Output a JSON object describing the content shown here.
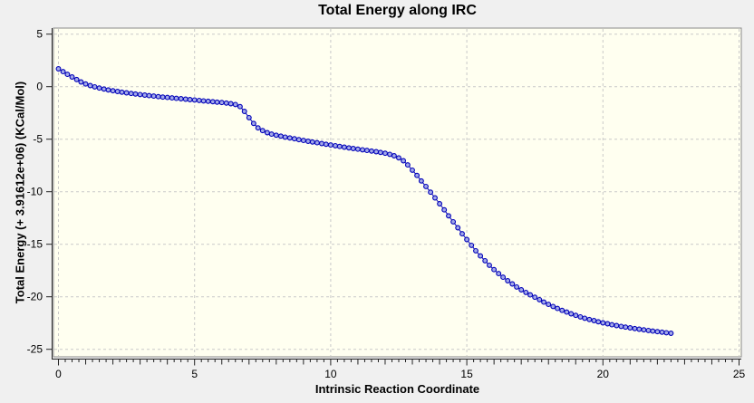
{
  "chart_data": {
    "type": "scatter",
    "title": "Total Energy along IRC",
    "xlabel": "Intrinsic Reaction Coordinate",
    "ylabel": "Total Energy (+ 3.91612e+06) (KCal/Mol)",
    "xlim": [
      -0.2,
      25.1
    ],
    "ylim": [
      -25.7,
      5.6
    ],
    "x_ticks": [
      0,
      5,
      10,
      15,
      20,
      25
    ],
    "x_tick_labels": [
      "0",
      "5",
      "10",
      "15",
      "20",
      "25"
    ],
    "x_minor_step": 0.25,
    "x_unit_step": 1,
    "y_ticks": [
      5,
      0,
      -5,
      -10,
      -15,
      -20,
      -25
    ],
    "y_tick_labels": [
      "5",
      "0",
      "-5",
      "-10",
      "-15",
      "-20",
      "-25"
    ],
    "grid": "dashed",
    "legend": "none",
    "colors": {
      "outer_background": "#f0f0f0",
      "plot_background": "#fffff0",
      "grid_color": "#c9c9c9",
      "border_color": "#8a8a8a",
      "axis_color": "#222222",
      "line_color": "#0000b8",
      "marker_edge": "#0000b8",
      "marker_fill": "#a3a9e8",
      "text_color": "#000000"
    },
    "series": [
      {
        "name": "Total Energy",
        "marker": "circle",
        "points": [
          [
            0,
            1.7
          ],
          [
            0.17,
            1.43
          ],
          [
            0.33,
            1.17
          ],
          [
            0.5,
            0.92
          ],
          [
            0.67,
            0.68
          ],
          [
            0.83,
            0.45
          ],
          [
            1,
            0.26
          ],
          [
            1.17,
            0.1
          ],
          [
            1.33,
            -0.02
          ],
          [
            1.5,
            -0.13
          ],
          [
            1.67,
            -0.22
          ],
          [
            1.83,
            -0.31
          ],
          [
            2,
            -0.39
          ],
          [
            2.17,
            -0.46
          ],
          [
            2.33,
            -0.53
          ],
          [
            2.5,
            -0.59
          ],
          [
            2.67,
            -0.65
          ],
          [
            2.83,
            -0.7
          ],
          [
            3,
            -0.75
          ],
          [
            3.17,
            -0.8
          ],
          [
            3.33,
            -0.85
          ],
          [
            3.5,
            -0.9
          ],
          [
            3.67,
            -0.95
          ],
          [
            3.83,
            -0.99
          ],
          [
            4,
            -1.03
          ],
          [
            4.17,
            -1.07
          ],
          [
            4.33,
            -1.11
          ],
          [
            4.5,
            -1.15
          ],
          [
            4.67,
            -1.19
          ],
          [
            4.83,
            -1.23
          ],
          [
            5,
            -1.27
          ],
          [
            5.17,
            -1.31
          ],
          [
            5.33,
            -1.35
          ],
          [
            5.5,
            -1.39
          ],
          [
            5.67,
            -1.43
          ],
          [
            5.83,
            -1.47
          ],
          [
            6,
            -1.51
          ],
          [
            6.17,
            -1.56
          ],
          [
            6.33,
            -1.62
          ],
          [
            6.5,
            -1.7
          ],
          [
            6.67,
            -1.9
          ],
          [
            6.83,
            -2.35
          ],
          [
            7,
            -2.95
          ],
          [
            7.17,
            -3.5
          ],
          [
            7.33,
            -3.92
          ],
          [
            7.5,
            -4.18
          ],
          [
            7.67,
            -4.38
          ],
          [
            7.83,
            -4.52
          ],
          [
            8,
            -4.62
          ],
          [
            8.17,
            -4.71
          ],
          [
            8.33,
            -4.8
          ],
          [
            8.5,
            -4.88
          ],
          [
            8.67,
            -4.96
          ],
          [
            8.83,
            -5.04
          ],
          [
            9,
            -5.12
          ],
          [
            9.17,
            -5.2
          ],
          [
            9.33,
            -5.27
          ],
          [
            9.5,
            -5.34
          ],
          [
            9.67,
            -5.41
          ],
          [
            9.83,
            -5.48
          ],
          [
            10,
            -5.55
          ],
          [
            10.17,
            -5.62
          ],
          [
            10.33,
            -5.69
          ],
          [
            10.5,
            -5.76
          ],
          [
            10.67,
            -5.83
          ],
          [
            10.83,
            -5.89
          ],
          [
            11,
            -5.95
          ],
          [
            11.17,
            -6.01
          ],
          [
            11.33,
            -6.07
          ],
          [
            11.5,
            -6.13
          ],
          [
            11.67,
            -6.19
          ],
          [
            11.83,
            -6.26
          ],
          [
            12,
            -6.34
          ],
          [
            12.17,
            -6.44
          ],
          [
            12.33,
            -6.58
          ],
          [
            12.5,
            -6.78
          ],
          [
            12.67,
            -7.05
          ],
          [
            12.83,
            -7.45
          ],
          [
            13,
            -7.95
          ],
          [
            13.17,
            -8.45
          ],
          [
            13.33,
            -8.97
          ],
          [
            13.5,
            -9.5
          ],
          [
            13.67,
            -10.04
          ],
          [
            13.83,
            -10.59
          ],
          [
            14,
            -11.15
          ],
          [
            14.17,
            -11.72
          ],
          [
            14.33,
            -12.29
          ],
          [
            14.5,
            -12.86
          ],
          [
            14.67,
            -13.43
          ],
          [
            14.83,
            -14
          ],
          [
            15,
            -14.55
          ],
          [
            15.17,
            -15.1
          ],
          [
            15.33,
            -15.62
          ],
          [
            15.5,
            -16.11
          ],
          [
            15.67,
            -16.57
          ],
          [
            15.83,
            -17
          ],
          [
            16,
            -17.41
          ],
          [
            16.17,
            -17.79
          ],
          [
            16.33,
            -18.14
          ],
          [
            16.5,
            -18.47
          ],
          [
            16.67,
            -18.78
          ],
          [
            16.83,
            -19.07
          ],
          [
            17,
            -19.34
          ],
          [
            17.17,
            -19.59
          ],
          [
            17.33,
            -19.82
          ],
          [
            17.5,
            -20.04
          ],
          [
            17.67,
            -20.28
          ],
          [
            17.83,
            -20.51
          ],
          [
            18,
            -20.72
          ],
          [
            18.17,
            -20.92
          ],
          [
            18.33,
            -21.11
          ],
          [
            18.5,
            -21.29
          ],
          [
            18.67,
            -21.46
          ],
          [
            18.83,
            -21.62
          ],
          [
            19,
            -21.77
          ],
          [
            19.17,
            -21.91
          ],
          [
            19.33,
            -22.04
          ],
          [
            19.5,
            -22.16
          ],
          [
            19.67,
            -22.27
          ],
          [
            19.83,
            -22.38
          ],
          [
            20,
            -22.48
          ],
          [
            20.17,
            -22.57
          ],
          [
            20.33,
            -22.66
          ],
          [
            20.5,
            -22.74
          ],
          [
            20.67,
            -22.82
          ],
          [
            20.83,
            -22.89
          ],
          [
            21,
            -22.96
          ],
          [
            21.17,
            -23.03
          ],
          [
            21.33,
            -23.09
          ],
          [
            21.5,
            -23.15
          ],
          [
            21.67,
            -23.21
          ],
          [
            21.83,
            -23.27
          ],
          [
            22,
            -23.32
          ],
          [
            22.17,
            -23.37
          ],
          [
            22.33,
            -23.42
          ],
          [
            22.5,
            -23.47
          ]
        ]
      }
    ]
  }
}
